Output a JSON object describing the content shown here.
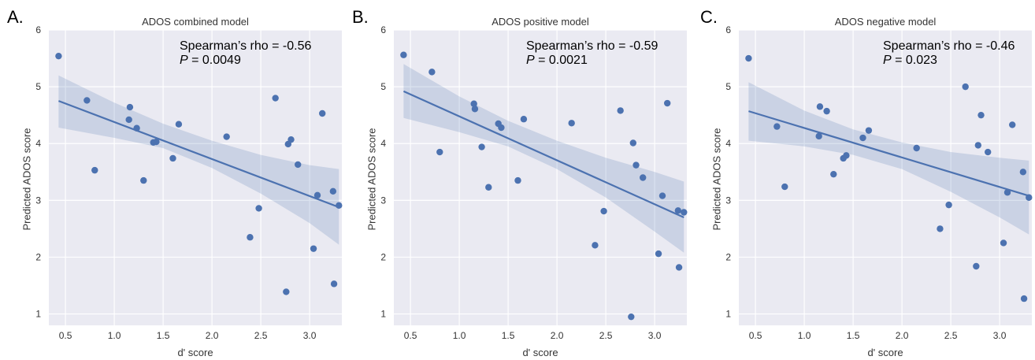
{
  "panels": [
    {
      "letter": "A.",
      "title": "ADOS combined model",
      "stat_line1": "Spearman’s rho = -0.56",
      "stat_p_label": "P",
      "stat_p_value": " = 0.0049"
    },
    {
      "letter": "B.",
      "title": "ADOS positive model",
      "stat_line1": "Spearman’s rho = -0.59",
      "stat_p_label": "P",
      "stat_p_value": " = 0.0021"
    },
    {
      "letter": "C.",
      "title": "ADOS negative model",
      "stat_line1": "Spearman’s rho = -0.46",
      "stat_p_label": "P",
      "stat_p_value": " = 0.023"
    }
  ],
  "chart_data": [
    {
      "type": "scatter",
      "title": "ADOS combined model",
      "xlabel": "d' score",
      "ylabel": "Predicted ADOS score",
      "xlim": [
        0.33,
        3.33
      ],
      "ylim": [
        0.8,
        6.0
      ],
      "xticks": [
        0.5,
        1.0,
        1.5,
        2.0,
        2.5,
        3.0
      ],
      "xtick_labels": [
        "0.5",
        "1.0",
        "1.5",
        "2.0",
        "2.5",
        "3.0"
      ],
      "yticks": [
        1,
        2,
        3,
        4,
        5,
        6
      ],
      "grid": true,
      "marker_color": "#4c72b0",
      "background_color": "#eaeaf2",
      "points": [
        {
          "x": 0.43,
          "y": 5.54
        },
        {
          "x": 0.72,
          "y": 4.76
        },
        {
          "x": 0.8,
          "y": 3.53
        },
        {
          "x": 1.15,
          "y": 4.42
        },
        {
          "x": 1.16,
          "y": 4.64
        },
        {
          "x": 1.23,
          "y": 4.27
        },
        {
          "x": 1.3,
          "y": 3.35
        },
        {
          "x": 1.4,
          "y": 4.02
        },
        {
          "x": 1.43,
          "y": 4.03
        },
        {
          "x": 1.6,
          "y": 3.74
        },
        {
          "x": 1.66,
          "y": 4.34
        },
        {
          "x": 2.15,
          "y": 4.12
        },
        {
          "x": 2.39,
          "y": 2.35
        },
        {
          "x": 2.48,
          "y": 2.86
        },
        {
          "x": 2.65,
          "y": 4.8
        },
        {
          "x": 2.76,
          "y": 1.39
        },
        {
          "x": 2.78,
          "y": 3.99
        },
        {
          "x": 2.81,
          "y": 4.07
        },
        {
          "x": 2.88,
          "y": 3.63
        },
        {
          "x": 3.04,
          "y": 2.15
        },
        {
          "x": 3.08,
          "y": 3.09
        },
        {
          "x": 3.13,
          "y": 4.53
        },
        {
          "x": 3.24,
          "y": 3.16
        },
        {
          "x": 3.25,
          "y": 1.53
        },
        {
          "x": 3.3,
          "y": 2.91
        }
      ],
      "regression": {
        "x0": 0.43,
        "y0": 4.75,
        "x1": 3.3,
        "y1": 2.88
      },
      "ci_band": [
        {
          "x": 0.43,
          "lo": 4.28,
          "hi": 5.2
        },
        {
          "x": 1.0,
          "lo": 4.1,
          "hi": 4.72
        },
        {
          "x": 1.5,
          "lo": 3.92,
          "hi": 4.35
        },
        {
          "x": 2.0,
          "lo": 3.57,
          "hi": 4.05
        },
        {
          "x": 2.5,
          "lo": 3.12,
          "hi": 3.8
        },
        {
          "x": 3.0,
          "lo": 2.6,
          "hi": 3.62
        },
        {
          "x": 3.3,
          "lo": 2.22,
          "hi": 3.55
        }
      ]
    },
    {
      "type": "scatter",
      "title": "ADOS positive model",
      "xlabel": "d' score",
      "ylabel": "Predicted ADOS score",
      "xlim": [
        0.33,
        3.33
      ],
      "ylim": [
        0.8,
        6.0
      ],
      "xticks": [
        0.5,
        1.0,
        1.5,
        2.0,
        2.5,
        3.0
      ],
      "xtick_labels": [
        "0.5",
        "1.0",
        "1.5",
        "2.0",
        "2.5",
        "3.0"
      ],
      "yticks": [
        1,
        2,
        3,
        4,
        5,
        6
      ],
      "grid": true,
      "marker_color": "#4c72b0",
      "background_color": "#eaeaf2",
      "points": [
        {
          "x": 0.43,
          "y": 5.56
        },
        {
          "x": 0.72,
          "y": 5.26
        },
        {
          "x": 0.8,
          "y": 3.85
        },
        {
          "x": 1.15,
          "y": 4.7
        },
        {
          "x": 1.16,
          "y": 4.61
        },
        {
          "x": 1.23,
          "y": 3.94
        },
        {
          "x": 1.3,
          "y": 3.23
        },
        {
          "x": 1.4,
          "y": 4.35
        },
        {
          "x": 1.43,
          "y": 4.28
        },
        {
          "x": 1.6,
          "y": 3.35
        },
        {
          "x": 1.66,
          "y": 4.43
        },
        {
          "x": 2.15,
          "y": 4.36
        },
        {
          "x": 2.39,
          "y": 2.21
        },
        {
          "x": 2.48,
          "y": 2.81
        },
        {
          "x": 2.65,
          "y": 4.58
        },
        {
          "x": 2.76,
          "y": 0.95
        },
        {
          "x": 2.78,
          "y": 4.01
        },
        {
          "x": 2.81,
          "y": 3.62
        },
        {
          "x": 2.88,
          "y": 3.4
        },
        {
          "x": 3.04,
          "y": 2.06
        },
        {
          "x": 3.08,
          "y": 3.08
        },
        {
          "x": 3.13,
          "y": 4.71
        },
        {
          "x": 3.24,
          "y": 2.82
        },
        {
          "x": 3.25,
          "y": 1.82
        },
        {
          "x": 3.3,
          "y": 2.79
        }
      ],
      "regression": {
        "x0": 0.43,
        "y0": 4.92,
        "x1": 3.3,
        "y1": 2.7
      },
      "ci_band": [
        {
          "x": 0.43,
          "lo": 4.45,
          "hi": 5.4
        },
        {
          "x": 1.0,
          "lo": 4.2,
          "hi": 4.83
        },
        {
          "x": 1.5,
          "lo": 3.95,
          "hi": 4.4
        },
        {
          "x": 2.0,
          "lo": 3.55,
          "hi": 4.05
        },
        {
          "x": 2.5,
          "lo": 3.05,
          "hi": 3.75
        },
        {
          "x": 3.0,
          "lo": 2.45,
          "hi": 3.5
        },
        {
          "x": 3.3,
          "lo": 2.08,
          "hi": 3.33
        }
      ]
    },
    {
      "type": "scatter",
      "title": "ADOS negative model",
      "xlabel": "d' score",
      "ylabel": "Predicted ADOS score",
      "xlim": [
        0.33,
        3.33
      ],
      "ylim": [
        0.8,
        6.0
      ],
      "xticks": [
        0.5,
        1.0,
        1.5,
        2.0,
        2.5,
        3.0
      ],
      "xtick_labels": [
        "0.5",
        "1.0",
        "1.5",
        "2.0",
        "2.5",
        "3.0"
      ],
      "yticks": [
        1,
        2,
        3,
        4,
        5,
        6
      ],
      "grid": true,
      "marker_color": "#4c72b0",
      "background_color": "#eaeaf2",
      "points": [
        {
          "x": 0.43,
          "y": 5.5
        },
        {
          "x": 0.72,
          "y": 4.3
        },
        {
          "x": 0.8,
          "y": 3.24
        },
        {
          "x": 1.15,
          "y": 4.13
        },
        {
          "x": 1.16,
          "y": 4.65
        },
        {
          "x": 1.23,
          "y": 4.57
        },
        {
          "x": 1.3,
          "y": 3.46
        },
        {
          "x": 1.4,
          "y": 3.74
        },
        {
          "x": 1.43,
          "y": 3.79
        },
        {
          "x": 1.6,
          "y": 4.1
        },
        {
          "x": 1.66,
          "y": 4.23
        },
        {
          "x": 2.15,
          "y": 3.92
        },
        {
          "x": 2.39,
          "y": 2.5
        },
        {
          "x": 2.48,
          "y": 2.92
        },
        {
          "x": 2.65,
          "y": 5.0
        },
        {
          "x": 2.76,
          "y": 1.84
        },
        {
          "x": 2.78,
          "y": 3.97
        },
        {
          "x": 2.81,
          "y": 4.5
        },
        {
          "x": 2.88,
          "y": 3.85
        },
        {
          "x": 3.04,
          "y": 2.25
        },
        {
          "x": 3.08,
          "y": 3.14
        },
        {
          "x": 3.13,
          "y": 4.33
        },
        {
          "x": 3.24,
          "y": 3.5
        },
        {
          "x": 3.25,
          "y": 1.27
        },
        {
          "x": 3.3,
          "y": 3.05
        }
      ],
      "regression": {
        "x0": 0.43,
        "y0": 4.57,
        "x1": 3.3,
        "y1": 3.08
      },
      "ci_band": [
        {
          "x": 0.43,
          "lo": 4.05,
          "hi": 5.08
        },
        {
          "x": 1.0,
          "lo": 3.95,
          "hi": 4.58
        },
        {
          "x": 1.5,
          "lo": 3.8,
          "hi": 4.25
        },
        {
          "x": 2.0,
          "lo": 3.55,
          "hi": 4.02
        },
        {
          "x": 2.5,
          "lo": 3.15,
          "hi": 3.85
        },
        {
          "x": 3.0,
          "lo": 2.7,
          "hi": 3.75
        },
        {
          "x": 3.3,
          "lo": 2.4,
          "hi": 3.7
        }
      ]
    }
  ]
}
